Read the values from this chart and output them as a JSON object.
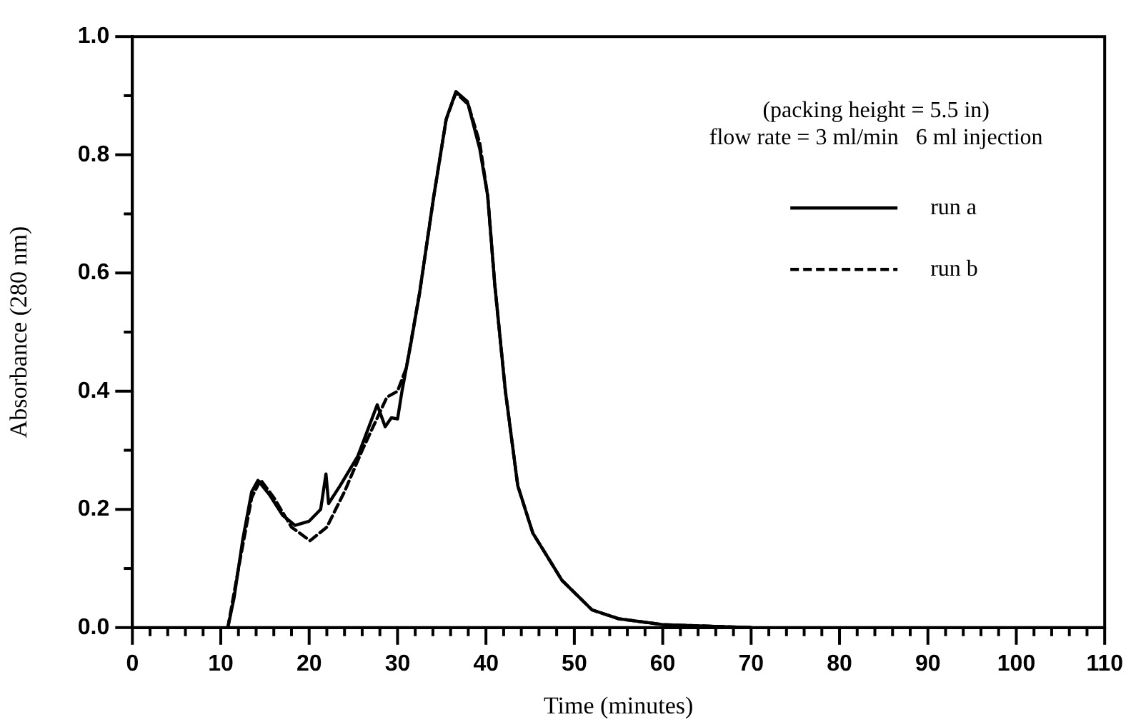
{
  "chart_data": {
    "type": "line",
    "xlabel": "Time (minutes)",
    "ylabel": "Absorbance (280 nm)",
    "annotations": [
      "(packing height = 5.5 in)",
      "flow rate = 3 ml/min   6 ml injection"
    ],
    "xlim": [
      0,
      110
    ],
    "ylim": [
      0,
      1.0
    ],
    "xticks": [
      0,
      {
        "value": 2,
        "label": null
      },
      {
        "value": 4,
        "label": null
      },
      {
        "value": 6,
        "label": null
      },
      {
        "value": 8,
        "label": null
      },
      10,
      {
        "value": 12,
        "label": null
      },
      {
        "value": 14,
        "label": null
      },
      {
        "value": 16,
        "label": null
      },
      {
        "value": 18,
        "label": null
      },
      20,
      {
        "value": 22,
        "label": null
      },
      {
        "value": 24,
        "label": null
      },
      {
        "value": 26,
        "label": null
      },
      {
        "value": 28,
        "label": null
      },
      30,
      {
        "value": 32,
        "label": null
      },
      {
        "value": 34,
        "label": null
      },
      {
        "value": 36,
        "label": null
      },
      {
        "value": 38,
        "label": null
      },
      40,
      {
        "value": 42,
        "label": null
      },
      {
        "value": 44,
        "label": null
      },
      {
        "value": 46,
        "label": null
      },
      {
        "value": 48,
        "label": null
      },
      50,
      {
        "value": 52,
        "label": null
      },
      {
        "value": 54,
        "label": null
      },
      {
        "value": 56,
        "label": null
      },
      {
        "value": 58,
        "label": null
      },
      60,
      {
        "value": 62,
        "label": null
      },
      {
        "value": 64,
        "label": null
      },
      {
        "value": 66,
        "label": null
      },
      {
        "value": 68,
        "label": null
      },
      70,
      {
        "value": 72,
        "label": null
      },
      {
        "value": 74,
        "label": null
      },
      {
        "value": 76,
        "label": null
      },
      {
        "value": 78,
        "label": null
      },
      80,
      {
        "value": 82,
        "label": null
      },
      {
        "value": 84,
        "label": null
      },
      {
        "value": 86,
        "label": null
      },
      {
        "value": 88,
        "label": null
      },
      90,
      {
        "value": 92,
        "label": null
      },
      {
        "value": 94,
        "label": null
      },
      {
        "value": 96,
        "label": null
      },
      {
        "value": 98,
        "label": null
      },
      100,
      {
        "value": 102,
        "label": null
      },
      {
        "value": 104,
        "label": null
      },
      {
        "value": 106,
        "label": null
      },
      {
        "value": 108,
        "label": null
      },
      110
    ],
    "yticks": [
      {
        "value": 0,
        "label": "0.0"
      },
      {
        "value": 0.1,
        "label": null
      },
      0.2,
      {
        "value": 0.3,
        "label": null
      },
      0.4,
      {
        "value": 0.5,
        "label": null
      },
      0.6,
      {
        "value": 0.7,
        "label": null
      },
      0.8,
      {
        "value": 0.9,
        "label": null
      },
      {
        "value": 1,
        "label": "1.0"
      }
    ],
    "grid": false,
    "legend": "top right",
    "marker": "none",
    "series": [
      {
        "name": "run a",
        "color": "#000000",
        "line_style": "solid",
        "x": [
          10.8,
          11.5,
          12.5,
          13.5,
          14.2,
          15.5,
          17,
          18.4,
          20,
          21.3,
          21.9,
          22.2,
          23.5,
          25.5,
          27.7,
          28.6,
          29.3,
          30,
          30.5,
          31.5,
          32.5,
          34.1,
          35.5,
          36.6,
          37.9,
          39.3,
          40.2,
          41,
          42.2,
          43.6,
          45.3,
          48.6,
          52,
          55,
          60,
          66,
          70
        ],
        "values": [
          0,
          0.05,
          0.15,
          0.23,
          0.249,
          0.225,
          0.19,
          0.173,
          0.18,
          0.2,
          0.26,
          0.21,
          0.24,
          0.29,
          0.377,
          0.34,
          0.355,
          0.353,
          0.4,
          0.48,
          0.567,
          0.73,
          0.86,
          0.907,
          0.89,
          0.81,
          0.73,
          0.58,
          0.4,
          0.24,
          0.16,
          0.08,
          0.03,
          0.015,
          0.005,
          0.002,
          0
        ]
      },
      {
        "name": "run b",
        "color": "#000000",
        "line_style": "dashed",
        "x": [
          10.8,
          12,
          13.5,
          14.5,
          16,
          18,
          20.1,
          22,
          24,
          26,
          28.8,
          30,
          31,
          32.5,
          34.1,
          35.5,
          36.6,
          38,
          39.3,
          40.2,
          41,
          42.2,
          43.6,
          45.3,
          48.6,
          52,
          55,
          60,
          66,
          70
        ],
        "values": [
          0,
          0.1,
          0.22,
          0.25,
          0.22,
          0.17,
          0.147,
          0.17,
          0.23,
          0.3,
          0.39,
          0.4,
          0.44,
          0.567,
          0.73,
          0.86,
          0.905,
          0.885,
          0.82,
          0.73,
          0.58,
          0.4,
          0.24,
          0.16,
          0.08,
          0.03,
          0.015,
          0.005,
          0.002,
          0
        ]
      }
    ]
  }
}
